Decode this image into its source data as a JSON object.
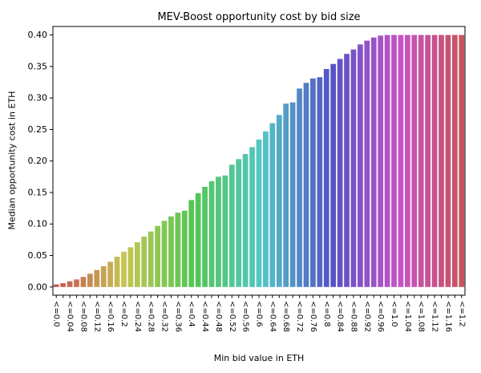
{
  "chart_data": {
    "type": "bar",
    "title": "MEV-Boost opportunity cost by bid size",
    "xlabel": "Min bid value in ETH",
    "ylabel": "Median opportunity cost in ETH",
    "x": [
      0.0,
      0.02,
      0.04,
      0.06,
      0.08,
      0.1,
      0.12,
      0.14,
      0.16,
      0.18,
      0.2,
      0.22,
      0.24,
      0.26,
      0.28,
      0.3,
      0.32,
      0.34,
      0.36,
      0.38,
      0.4,
      0.42,
      0.44,
      0.46,
      0.48,
      0.5,
      0.52,
      0.54,
      0.56,
      0.58,
      0.6,
      0.62,
      0.64,
      0.66,
      0.68,
      0.7,
      0.72,
      0.74,
      0.76,
      0.78,
      0.8,
      0.82,
      0.84,
      0.86,
      0.88,
      0.9,
      0.92,
      0.94,
      0.96,
      0.98,
      1.0,
      1.02,
      1.04,
      1.06,
      1.08,
      1.1,
      1.12,
      1.14,
      1.16,
      1.18,
      1.2
    ],
    "values": [
      0.004,
      0.006,
      0.009,
      0.012,
      0.016,
      0.021,
      0.027,
      0.033,
      0.04,
      0.048,
      0.056,
      0.063,
      0.071,
      0.08,
      0.088,
      0.097,
      0.105,
      0.112,
      0.118,
      0.121,
      0.138,
      0.149,
      0.159,
      0.168,
      0.175,
      0.177,
      0.194,
      0.203,
      0.211,
      0.222,
      0.234,
      0.247,
      0.26,
      0.273,
      0.291,
      0.293,
      0.315,
      0.324,
      0.331,
      0.333,
      0.346,
      0.354,
      0.362,
      0.37,
      0.377,
      0.385,
      0.391,
      0.396,
      0.399,
      0.4,
      0.4,
      0.4,
      0.4,
      0.4,
      0.4,
      0.4,
      0.4,
      0.4,
      0.4,
      0.4,
      0.4
    ],
    "xtick_labels": [
      "<=0.0",
      "<=0.04",
      "<=0.08",
      "<=0.12",
      "<=0.16",
      "<=0.2",
      "<=0.24",
      "<=0.28",
      "<=0.32",
      "<=0.36",
      "<=0.4",
      "<=0.44",
      "<=0.48",
      "<=0.52",
      "<=0.56",
      "<=0.6",
      "<=0.64",
      "<=0.68",
      "<=0.72",
      "<=0.76",
      "<=0.8",
      "<=0.84",
      "<=0.88",
      "<=0.92",
      "<=0.96",
      "<=1.0",
      "<=1.04",
      "<=1.08",
      "<=1.12",
      "<=1.16",
      "<=1.2"
    ],
    "ytick_labels": [
      "0.00",
      "0.05",
      "0.10",
      "0.15",
      "0.20",
      "0.25",
      "0.30",
      "0.35",
      "0.40"
    ],
    "ylim": [
      -0.013,
      0.4135
    ],
    "grid": false,
    "legend": false,
    "palette": "rainbow-hue-cycle",
    "spine_color": "#000000",
    "background_color": "#ffffff"
  }
}
